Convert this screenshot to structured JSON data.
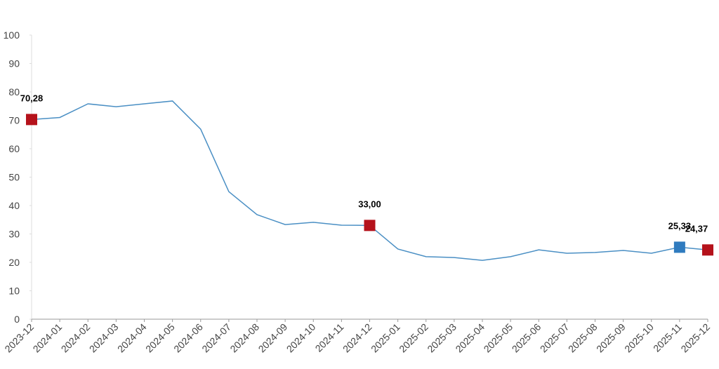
{
  "chart_data": {
    "type": "line",
    "categories": [
      "2023-12",
      "2024-01",
      "2024-02",
      "2024-03",
      "2024-04",
      "2024-05",
      "2024-06",
      "2024-07",
      "2024-08",
      "2024-09",
      "2024-10",
      "2024-11",
      "2024-12",
      "2025-01",
      "2025-02",
      "2025-03",
      "2025-04",
      "2025-05",
      "2025-06",
      "2025-07",
      "2025-08",
      "2025-09",
      "2025-10",
      "2025-11",
      "2025-12"
    ],
    "series": [
      {
        "color": "#4a8fc4",
        "values": [
          70.28,
          71.0,
          75.8,
          74.8,
          75.8,
          76.8,
          66.9,
          44.9,
          36.8,
          33.3,
          34.1,
          33.1,
          33.0,
          24.7,
          22.0,
          21.7,
          20.7,
          22.0,
          24.4,
          23.2,
          23.5,
          24.2,
          23.2,
          25.33,
          24.37
        ],
        "value_labels": [
          "70,28",
          null,
          null,
          null,
          null,
          null,
          null,
          null,
          null,
          null,
          null,
          null,
          "33,00",
          null,
          null,
          null,
          null,
          null,
          null,
          null,
          null,
          null,
          null,
          "25,33",
          "24,37"
        ],
        "marker_colors": [
          "#b5121b",
          null,
          null,
          null,
          null,
          null,
          null,
          null,
          null,
          null,
          null,
          null,
          "#b5121b",
          null,
          null,
          null,
          null,
          null,
          null,
          null,
          null,
          null,
          null,
          "#2f7bbf",
          "#b5121b"
        ]
      }
    ],
    "ylim": [
      0,
      100
    ],
    "yticks": [
      0,
      10,
      20,
      30,
      40,
      50,
      60,
      70,
      80,
      90,
      100
    ],
    "grid": false
  }
}
